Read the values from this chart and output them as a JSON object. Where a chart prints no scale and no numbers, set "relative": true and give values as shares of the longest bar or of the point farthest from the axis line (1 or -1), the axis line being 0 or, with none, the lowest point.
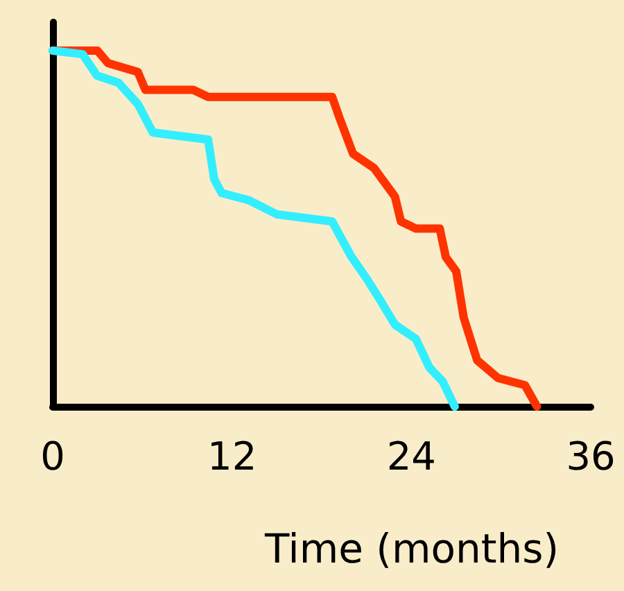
{
  "chart_data": {
    "type": "line",
    "relative": true,
    "xlabel": "Time (months)",
    "xlim": [
      0,
      36
    ],
    "xticks": [
      0,
      12,
      24,
      36
    ],
    "marker": "none",
    "line_style": "solid",
    "grid": false,
    "series": [
      {
        "color": "#ff3300",
        "x": [
          0,
          3,
          3.7,
          5.7,
          6.2,
          9.4,
          10.4,
          18.7,
          19.2,
          20.1,
          21.5,
          22.9,
          23.3,
          24.3,
          25.9,
          26.3,
          27,
          27.5,
          28.4,
          29.8,
          31.6,
          32.4
        ],
        "values": [
          1,
          1,
          0.965,
          0.94,
          0.89,
          0.89,
          0.87,
          0.87,
          0.81,
          0.71,
          0.67,
          0.59,
          0.52,
          0.5,
          0.5,
          0.42,
          0.38,
          0.25,
          0.13,
          0.08,
          0.06,
          0
        ]
      },
      {
        "color": "#33eeff",
        "x": [
          0,
          2,
          2.96,
          4.4,
          5.7,
          6.7,
          10.4,
          10.8,
          11.3,
          13.1,
          15,
          18.7,
          20,
          21,
          21.9,
          22.9,
          24.3,
          25.2,
          26.1,
          26.9
        ],
        "values": [
          1,
          0.99,
          0.93,
          0.91,
          0.85,
          0.77,
          0.75,
          0.64,
          0.6,
          0.58,
          0.54,
          0.52,
          0.42,
          0.36,
          0.3,
          0.23,
          0.19,
          0.11,
          0.07,
          0
        ]
      }
    ]
  }
}
